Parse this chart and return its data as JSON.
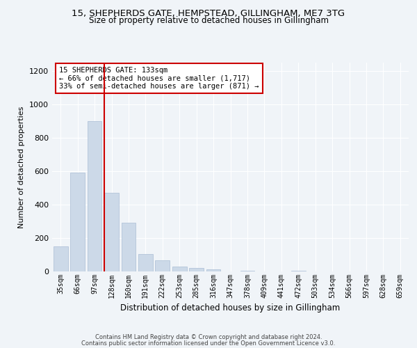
{
  "title1": "15, SHEPHERDS GATE, HEMPSTEAD, GILLINGHAM, ME7 3TG",
  "title2": "Size of property relative to detached houses in Gillingham",
  "xlabel": "Distribution of detached houses by size in Gillingham",
  "ylabel": "Number of detached properties",
  "categories": [
    "35sqm",
    "66sqm",
    "97sqm",
    "128sqm",
    "160sqm",
    "191sqm",
    "222sqm",
    "253sqm",
    "285sqm",
    "316sqm",
    "347sqm",
    "378sqm",
    "409sqm",
    "441sqm",
    "472sqm",
    "503sqm",
    "534sqm",
    "566sqm",
    "597sqm",
    "628sqm",
    "659sqm"
  ],
  "values": [
    150,
    590,
    900,
    470,
    290,
    105,
    65,
    28,
    20,
    13,
    0,
    5,
    2,
    0,
    4,
    0,
    0,
    0,
    0,
    0,
    0
  ],
  "bar_color": "#ccd9e8",
  "bar_edge_color": "#aabdd4",
  "vline_color": "#cc0000",
  "vline_x": 2.575,
  "annotation_text": "15 SHEPHERDS GATE: 133sqm\n← 66% of detached houses are smaller (1,717)\n33% of semi-detached houses are larger (871) →",
  "annotation_box_color": "#ffffff",
  "annotation_box_edge": "#cc0000",
  "ylim": [
    0,
    1250
  ],
  "yticks": [
    0,
    200,
    400,
    600,
    800,
    1000,
    1200
  ],
  "footer1": "Contains HM Land Registry data © Crown copyright and database right 2024.",
  "footer2": "Contains public sector information licensed under the Open Government Licence v3.0.",
  "bg_color": "#f0f4f8",
  "plot_bg_color": "#f0f4f8",
  "grid_color": "#ffffff"
}
